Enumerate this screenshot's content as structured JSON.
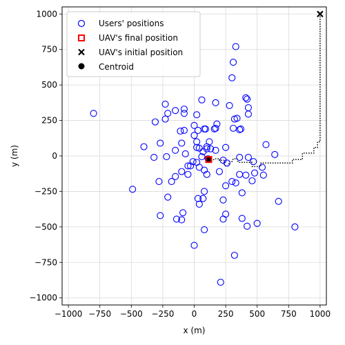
{
  "chart_data": {
    "type": "scatter",
    "xlabel": "x (m)",
    "ylabel": "y (m)",
    "xlim": [
      -1050,
      1050
    ],
    "ylim": [
      -1050,
      1050
    ],
    "xticks": [
      -1000,
      -750,
      -500,
      -250,
      0,
      250,
      500,
      750,
      1000
    ],
    "yticks": [
      -1000,
      -750,
      -500,
      -250,
      0,
      250,
      500,
      750,
      1000
    ],
    "grid": true,
    "legend_position": "top-left",
    "legend": [
      {
        "label": "Users' positions",
        "marker": "open-circle",
        "color": "#0000ff"
      },
      {
        "label": "UAV's final position",
        "marker": "square",
        "color": "#ff0000"
      },
      {
        "label": "UAV's initial position",
        "marker": "x",
        "color": "#000000"
      },
      {
        "label": "Centroid",
        "marker": "filled-circle",
        "color": "#000000"
      }
    ],
    "users": [
      [
        330,
        770
      ],
      [
        310,
        660
      ],
      [
        300,
        550
      ],
      [
        420,
        400
      ],
      [
        410,
        410
      ],
      [
        280,
        355
      ],
      [
        430,
        340
      ],
      [
        320,
        260
      ],
      [
        340,
        265
      ],
      [
        430,
        295
      ],
      [
        60,
        395
      ],
      [
        170,
        375
      ],
      [
        -230,
        365
      ],
      [
        -80,
        330
      ],
      [
        -150,
        320
      ],
      [
        -210,
        300
      ],
      [
        -80,
        300
      ],
      [
        20,
        290
      ],
      [
        -230,
        260
      ],
      [
        -310,
        240
      ],
      [
        180,
        225
      ],
      [
        170,
        195
      ],
      [
        80,
        190
      ],
      [
        90,
        190
      ],
      [
        160,
        190
      ],
      [
        30,
        180
      ],
      [
        -110,
        175
      ],
      [
        -80,
        180
      ],
      [
        0,
        215
      ],
      [
        310,
        195
      ],
      [
        370,
        190
      ],
      [
        360,
        185
      ],
      [
        0,
        145
      ],
      [
        120,
        100
      ],
      [
        20,
        100
      ],
      [
        -270,
        90
      ],
      [
        -100,
        90
      ],
      [
        -400,
        65
      ],
      [
        100,
        65
      ],
      [
        250,
        60
      ],
      [
        20,
        60
      ],
      [
        40,
        55
      ],
      [
        100,
        50
      ],
      [
        130,
        50
      ],
      [
        170,
        40
      ],
      [
        -150,
        40
      ],
      [
        70,
        30
      ],
      [
        -70,
        15
      ],
      [
        -220,
        -5
      ],
      [
        -320,
        -10
      ],
      [
        360,
        -10
      ],
      [
        430,
        -10
      ],
      [
        640,
        10
      ],
      [
        570,
        80
      ],
      [
        -800,
        300
      ],
      [
        230,
        -30
      ],
      [
        260,
        -50
      ],
      [
        -10,
        -40
      ],
      [
        20,
        -45
      ],
      [
        60,
        -5
      ],
      [
        110,
        -20
      ],
      [
        -30,
        -70
      ],
      [
        -50,
        -70
      ],
      [
        40,
        -80
      ],
      [
        80,
        -100
      ],
      [
        -100,
        -110
      ],
      [
        -50,
        -130
      ],
      [
        -150,
        -145
      ],
      [
        -180,
        -180
      ],
      [
        -280,
        -180
      ],
      [
        100,
        -130
      ],
      [
        200,
        -110
      ],
      [
        360,
        -130
      ],
      [
        410,
        -135
      ],
      [
        480,
        -120
      ],
      [
        540,
        -80
      ],
      [
        470,
        -40
      ],
      [
        550,
        -135
      ],
      [
        300,
        -180
      ],
      [
        330,
        -190
      ],
      [
        250,
        -210
      ],
      [
        460,
        -175
      ],
      [
        380,
        -260
      ],
      [
        -490,
        -235
      ],
      [
        30,
        -300
      ],
      [
        70,
        -300
      ],
      [
        80,
        -250
      ],
      [
        230,
        -310
      ],
      [
        40,
        -340
      ],
      [
        670,
        -320
      ],
      [
        -210,
        -290
      ],
      [
        -270,
        -420
      ],
      [
        -90,
        -400
      ],
      [
        -140,
        -445
      ],
      [
        -100,
        -450
      ],
      [
        250,
        -410
      ],
      [
        230,
        -445
      ],
      [
        380,
        -440
      ],
      [
        500,
        -475
      ],
      [
        420,
        -495
      ],
      [
        800,
        -500
      ],
      [
        80,
        -520
      ],
      [
        0,
        -630
      ],
      [
        320,
        -700
      ],
      [
        210,
        -890
      ]
    ],
    "uav_path": [
      [
        1000,
        1000
      ],
      [
        1000,
        400
      ],
      [
        1000,
        300
      ],
      [
        1000,
        200
      ],
      [
        1000,
        100
      ],
      [
        980,
        100
      ],
      [
        980,
        60
      ],
      [
        950,
        60
      ],
      [
        950,
        20
      ],
      [
        860,
        20
      ],
      [
        860,
        -25
      ],
      [
        780,
        -25
      ],
      [
        780,
        -50
      ],
      [
        560,
        -50
      ],
      [
        530,
        -50
      ],
      [
        530,
        -75
      ],
      [
        460,
        -75
      ],
      [
        460,
        -45
      ],
      [
        350,
        -45
      ],
      [
        340,
        -20
      ],
      [
        310,
        -20
      ],
      [
        300,
        -40
      ],
      [
        280,
        -40
      ],
      [
        270,
        -70
      ],
      [
        240,
        -70
      ],
      [
        240,
        -30
      ],
      [
        200,
        -30
      ],
      [
        200,
        -20
      ],
      [
        160,
        -20
      ],
      [
        150,
        -30
      ],
      [
        115,
        -30
      ]
    ],
    "uav_final": [
      115,
      -25
    ],
    "uav_initial": [
      1000,
      1000
    ],
    "centroid": [
      115,
      -20
    ]
  }
}
